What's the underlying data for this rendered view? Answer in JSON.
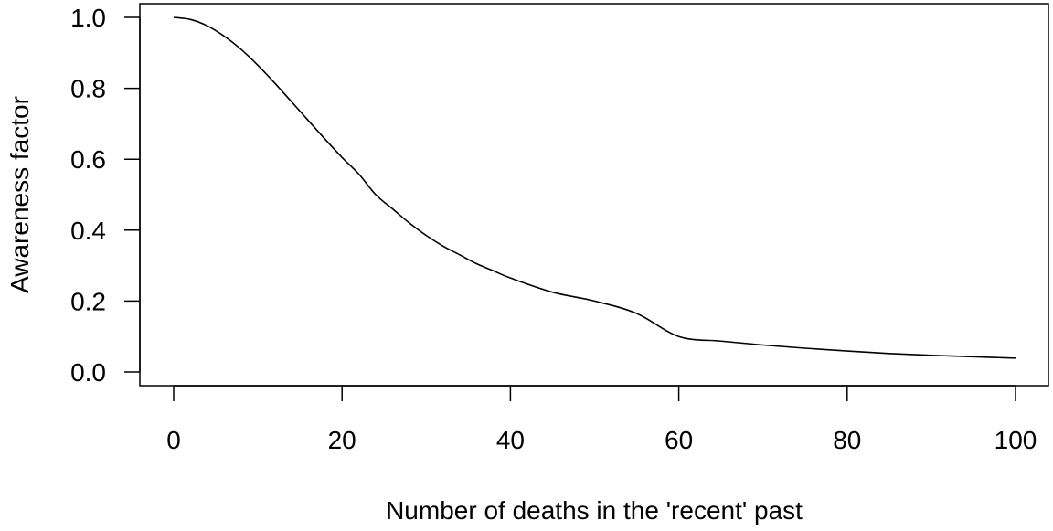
{
  "chart_data": {
    "type": "line",
    "title": "",
    "xlabel": "Number of deaths in the 'recent' past",
    "ylabel": "Awareness factor",
    "xlim": [
      0,
      100
    ],
    "ylim": [
      0,
      1
    ],
    "xticks": [
      0,
      20,
      40,
      60,
      80,
      100
    ],
    "xtick_labels": [
      "0",
      "20",
      "40",
      "60",
      "80",
      "100"
    ],
    "yticks": [
      0,
      0.2,
      0.4,
      0.6,
      0.8,
      1.0
    ],
    "ytick_labels": [
      "0.0",
      "0.2",
      "0.4",
      "0.6",
      "0.8",
      "1.0"
    ],
    "grid": false,
    "legend": "none",
    "series": [
      {
        "color": "#000000",
        "x": [
          0,
          2,
          4,
          6,
          8,
          10,
          12,
          14,
          16,
          18,
          20,
          22,
          24,
          26,
          28,
          30,
          32,
          34,
          36,
          38,
          40,
          45,
          50,
          55,
          60,
          65,
          70,
          75,
          80,
          85,
          90,
          95,
          100
        ],
        "y": [
          1.0,
          0.994,
          0.976,
          0.947,
          0.91,
          0.865,
          0.815,
          0.762,
          0.709,
          0.656,
          0.605,
          0.558,
          0.5,
          0.46,
          0.42,
          0.385,
          0.355,
          0.33,
          0.305,
          0.285,
          0.265,
          0.225,
          0.2,
          0.165,
          0.1,
          0.087,
          0.076,
          0.067,
          0.059,
          0.052,
          0.047,
          0.043,
          0.039
        ]
      }
    ]
  }
}
